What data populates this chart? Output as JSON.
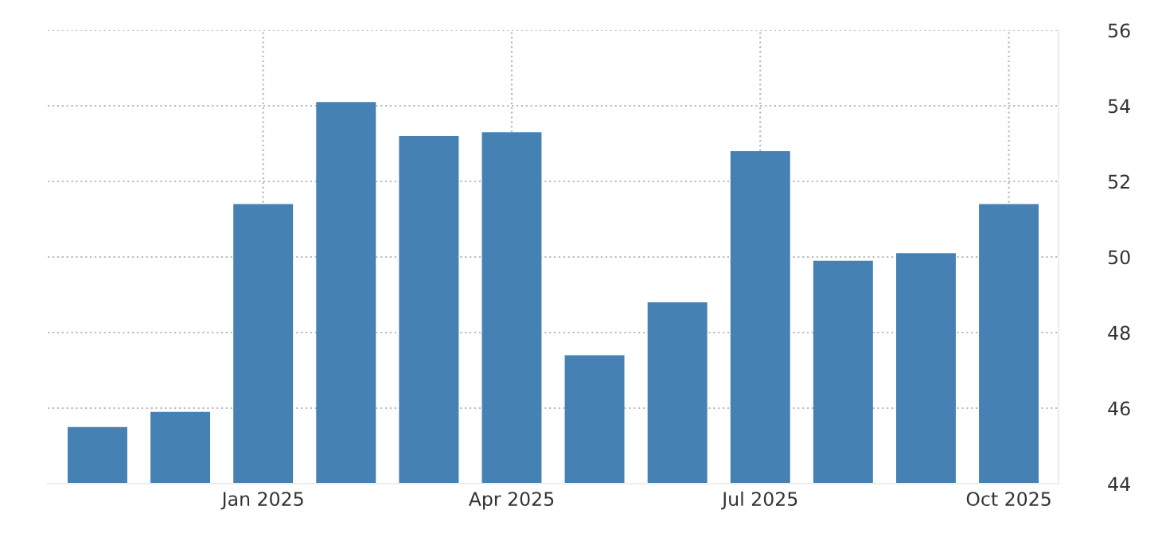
{
  "chart_data": {
    "type": "bar",
    "categories": [
      null,
      null,
      "Jan 2025",
      null,
      null,
      "Apr 2025",
      null,
      null,
      "Jul 2025",
      null,
      null,
      "Oct 2025"
    ],
    "values": [
      45.5,
      45.9,
      51.4,
      54.1,
      53.2,
      53.3,
      47.4,
      48.8,
      52.8,
      49.9,
      50.1,
      51.4
    ],
    "color": "#4581b3",
    "ylim": [
      44,
      56
    ],
    "yticks": [
      44,
      46,
      48,
      50,
      52,
      54,
      56
    ],
    "grid": true,
    "legend": false
  }
}
